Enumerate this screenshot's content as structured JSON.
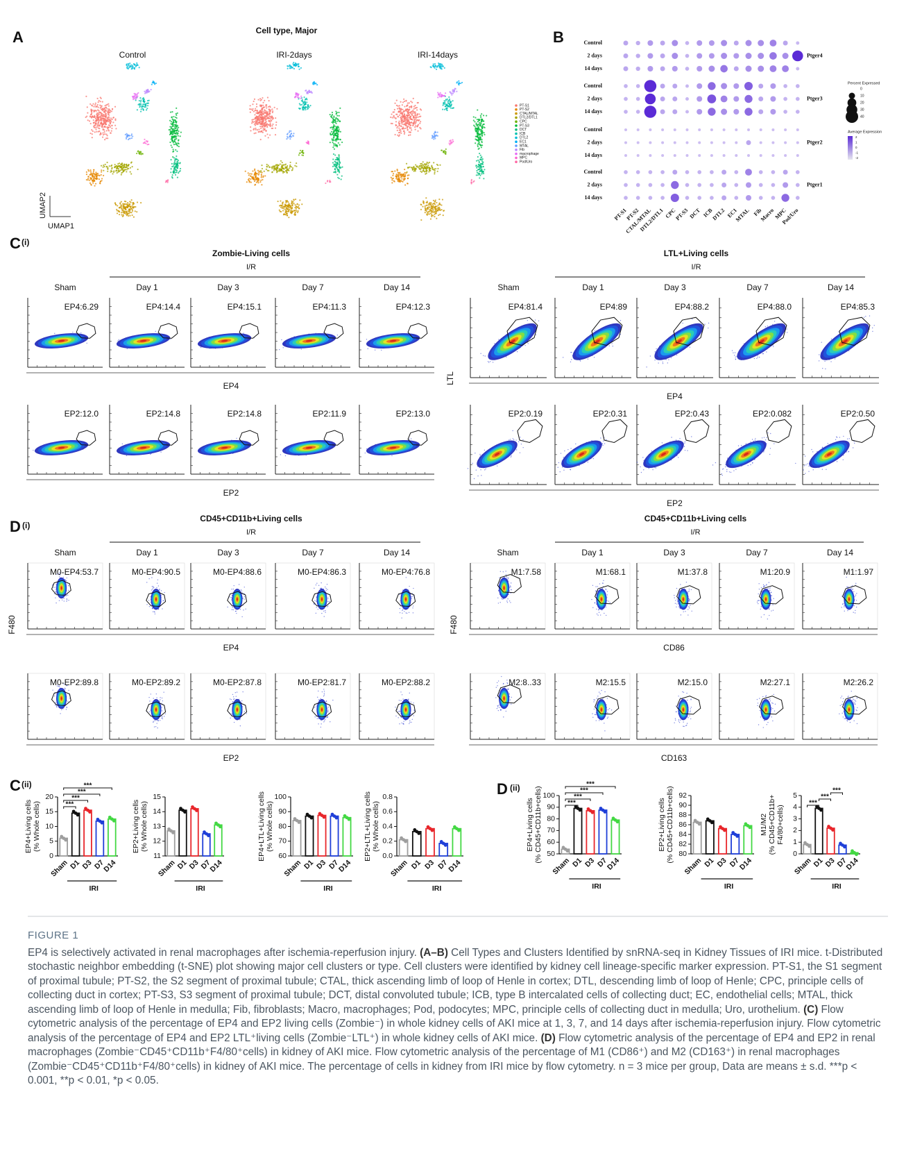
{
  "panel_labels": {
    "A": "A",
    "B": "B",
    "Ci": [
      "C",
      "(i)"
    ],
    "Di": [
      "D",
      "(i)"
    ],
    "Cii": [
      "C",
      "(ii)"
    ],
    "Dii": [
      "D",
      "(ii)"
    ]
  },
  "umap": {
    "title": "Cell type, Major",
    "plots": [
      "Control",
      "IRI-2days",
      "IRI-14days"
    ],
    "x_label": "UMAP1",
    "y_label": "UMAP2",
    "legend": [
      {
        "name": "PT-S1",
        "color": "#F8766D"
      },
      {
        "name": "PT-S2",
        "color": "#E58700"
      },
      {
        "name": "CTAL/MTAL",
        "color": "#C99800"
      },
      {
        "name": "DTL2/DTL1",
        "color": "#A3A500"
      },
      {
        "name": "CPC",
        "color": "#6BB100"
      },
      {
        "name": "PT-S3",
        "color": "#00BA38"
      },
      {
        "name": "DCT",
        "color": "#00BF7D"
      },
      {
        "name": "ICB",
        "color": "#00C0AF"
      },
      {
        "name": "DTL2",
        "color": "#00BCD8"
      },
      {
        "name": "EC1",
        "color": "#00B0F6"
      },
      {
        "name": "MTAL",
        "color": "#619CFF"
      },
      {
        "name": "Fib",
        "color": "#B983FF"
      },
      {
        "name": "macrophage",
        "color": "#E76BF3"
      },
      {
        "name": "MPC",
        "color": "#FD61D1"
      },
      {
        "name": "Pod/Uro",
        "color": "#FF67A4"
      }
    ]
  },
  "flow": [
    {
      "title": "Zombie-Living cells",
      "group": "I/R",
      "columns": [
        "Sham",
        "Day 1",
        "Day 3",
        "Day 7",
        "Day 14"
      ],
      "rows": [
        {
          "gates": [
            "EP4:6.29",
            "EP4:14.4",
            "EP4:15.1",
            "EP4:11.3",
            "EP4:12.3"
          ],
          "x_label": "EP4"
        },
        {
          "gates": [
            "EP2:12.0",
            "EP2:14.8",
            "EP2:14.8",
            "EP2:11.9",
            "EP2:13.0"
          ],
          "x_label": "EP2"
        }
      ]
    },
    {
      "title": "LTL+Living cells",
      "group": "I/R",
      "y_label": "LTL",
      "columns": [
        "Sham",
        "Day 1",
        "Day 3",
        "Day 7",
        "Day 14"
      ],
      "rows": [
        {
          "gates": [
            "EP4:81.4",
            "EP4:89",
            "EP4:88.2",
            "EP4:88.0",
            "EP4:85.3"
          ],
          "x_label": "EP4"
        },
        {
          "gates": [
            "EP2:0.19",
            "EP2:0.31",
            "EP2:0.43",
            "EP2:0.082",
            "EP2:0.50"
          ],
          "x_label": "EP2"
        }
      ]
    },
    {
      "title": "CD45+CD11b+Living cells",
      "group": "I/R",
      "y_label": "F480",
      "columns": [
        "Sham",
        "Day 1",
        "Day 3",
        "Day 7",
        "Day 14"
      ],
      "rows": [
        {
          "gates": [
            "M0-EP4:53.7",
            "M0-EP4:90.5",
            "M0-EP4:88.6",
            "M0-EP4:86.3",
            "M0-EP4:76.8"
          ],
          "x_label": "EP4"
        },
        {
          "gates": [
            "M0-EP2:89.8",
            "M0-EP2:89.2",
            "M0-EP2:87.8",
            "M0-EP2:81.7",
            "M0-EP2:88.2"
          ],
          "x_label": "EP2"
        }
      ]
    },
    {
      "title": "CD45+CD11b+Living cells",
      "group": "I/R",
      "y_label": "F480",
      "columns": [
        "Sham",
        "Day 1",
        "Day 3",
        "Day 7",
        "Day 14"
      ],
      "rows": [
        {
          "gates": [
            "M1:7.58",
            "M1:68.1",
            "M1:37.8",
            "M1:20.9",
            "M1:1.97"
          ],
          "x_label": "CD86"
        },
        {
          "gates": [
            "M2:8..33",
            "M2:15.5",
            "M2:15.0",
            "M2:27.1",
            "M2:26.2"
          ],
          "x_label": "CD163"
        }
      ]
    }
  ],
  "chart_data": [
    {
      "type": "dot",
      "categories": [
        "PT-S1",
        "PT-S2",
        "CTAL/MTAL",
        "DTL2/DTL1",
        "CPC",
        "PT-S3",
        "DCT",
        "ICB",
        "DTL2",
        "EC1",
        "MTAL",
        "Fib",
        "Macro",
        "MPC",
        "Pod/Uro"
      ],
      "conditions": [
        "Control",
        "2 days",
        "14 days"
      ],
      "genes": [
        "Ptger4",
        "Ptger3",
        "Ptger2",
        "Ptger1"
      ],
      "values": [
        [
          [
            6,
            5,
            8,
            6,
            10,
            4,
            8,
            8,
            10,
            6,
            10,
            10,
            12,
            6,
            3
          ],
          [
            6,
            5,
            8,
            6,
            10,
            4,
            8,
            8,
            10,
            8,
            10,
            10,
            14,
            10,
            30
          ],
          [
            6,
            5,
            8,
            6,
            8,
            4,
            8,
            10,
            14,
            6,
            10,
            10,
            12,
            12,
            3
          ]
        ],
        [
          [
            4,
            4,
            38,
            6,
            6,
            3,
            8,
            16,
            10,
            8,
            18,
            6,
            8,
            4,
            4
          ],
          [
            4,
            4,
            30,
            6,
            6,
            3,
            8,
            20,
            12,
            8,
            16,
            6,
            8,
            4,
            4
          ],
          [
            4,
            4,
            38,
            6,
            6,
            3,
            8,
            16,
            10,
            8,
            16,
            6,
            8,
            4,
            4
          ]
        ],
        [
          [
            2,
            2,
            2,
            2,
            2,
            2,
            2,
            2,
            2,
            2,
            2,
            2,
            2,
            2,
            2
          ],
          [
            2,
            2,
            2,
            2,
            2,
            2,
            2,
            2,
            2,
            2,
            6,
            2,
            2,
            2,
            2
          ],
          [
            2,
            2,
            2,
            2,
            2,
            2,
            2,
            2,
            2,
            2,
            2,
            2,
            2,
            2,
            2
          ]
        ],
        [
          [
            4,
            4,
            4,
            4,
            6,
            4,
            4,
            4,
            6,
            4,
            12,
            4,
            4,
            6,
            4
          ],
          [
            4,
            4,
            4,
            4,
            16,
            4,
            4,
            4,
            6,
            4,
            8,
            4,
            4,
            8,
            4
          ],
          [
            4,
            4,
            4,
            4,
            18,
            4,
            4,
            4,
            6,
            4,
            8,
            4,
            4,
            16,
            4
          ]
        ]
      ],
      "size_title": "Percent Expressed",
      "size_ticks": [
        0,
        10,
        20,
        30,
        40
      ],
      "color_title": "Average Expression",
      "color_ticks": [
        2,
        1,
        0,
        -1,
        -2
      ],
      "color": "#5b2bd6"
    },
    {
      "type": "bar",
      "y_label": [
        "EP4+Living cells",
        "(% Whole cells)"
      ],
      "categories": [
        "Sham",
        "D1",
        "D3",
        "D7",
        "D14"
      ],
      "group": "IRI",
      "values": [
        6,
        14.5,
        15.5,
        11.8,
        12.5
      ],
      "colors": [
        "#9e9e9e",
        "#111111",
        "#e8262b",
        "#1f3fd8",
        "#43d843"
      ],
      "ylim": [
        0,
        20
      ],
      "yticks": [
        0,
        5,
        10,
        15,
        20
      ],
      "significance": [
        {
          "pair": [
            "Sham",
            "D1"
          ],
          "label": "***"
        },
        {
          "pair": [
            "Sham",
            "D3"
          ],
          "label": "***"
        },
        {
          "pair": [
            "Sham",
            "D7"
          ],
          "label": "***"
        },
        {
          "pair": [
            "Sham",
            "D14"
          ],
          "label": "***"
        }
      ]
    },
    {
      "type": "bar",
      "y_label": [
        "EP2+Living cells",
        "(% Whole cells)"
      ],
      "categories": [
        "Sham",
        "D1",
        "D3",
        "D7",
        "D14"
      ],
      "group": "IRI",
      "values": [
        12.7,
        14.1,
        14.2,
        12.5,
        13.1
      ],
      "colors": [
        "#9e9e9e",
        "#111111",
        "#e8262b",
        "#1f3fd8",
        "#43d843"
      ],
      "ylim": [
        11,
        15
      ],
      "yticks": [
        11,
        12,
        13,
        14,
        15
      ]
    },
    {
      "type": "bar",
      "y_label": [
        "EP4+LTL+Living cells",
        "(% Whole cells)"
      ],
      "categories": [
        "Sham",
        "D1",
        "D3",
        "D7",
        "D14"
      ],
      "group": "IRI",
      "values": [
        84,
        87,
        87.5,
        87,
        86
      ],
      "colors": [
        "#9e9e9e",
        "#111111",
        "#e8262b",
        "#1f3fd8",
        "#43d843"
      ],
      "ylim": [
        60,
        100
      ],
      "yticks": [
        60,
        70,
        80,
        90,
        100
      ]
    },
    {
      "type": "bar",
      "y_label": [
        "EP2+LTL+Living cells",
        "(% Whole cells)"
      ],
      "categories": [
        "Sham",
        "D1",
        "D3",
        "D7",
        "D14"
      ],
      "group": "IRI",
      "values": [
        0.22,
        0.33,
        0.37,
        0.17,
        0.37
      ],
      "colors": [
        "#9e9e9e",
        "#111111",
        "#e8262b",
        "#1f3fd8",
        "#43d843"
      ],
      "ylim": [
        0,
        0.8
      ],
      "yticks": [
        {
          "value": 0,
          "label": "0.0"
        },
        0.2,
        0.4,
        0.6,
        0.8
      ]
    },
    {
      "type": "bar",
      "y_label": [
        "EP4+Living cells",
        "(% CD45+CD11b+cells)"
      ],
      "categories": [
        "Sham",
        "D1",
        "D3",
        "D7",
        "D14"
      ],
      "group": "IRI",
      "values": [
        54,
        89,
        87,
        87.5,
        79
      ],
      "colors": [
        "#9e9e9e",
        "#111111",
        "#e8262b",
        "#1f3fd8",
        "#43d843"
      ],
      "ylim": [
        50,
        100
      ],
      "yticks": [
        50,
        60,
        70,
        80,
        90,
        100
      ],
      "significance": [
        {
          "pair": [
            "Sham",
            "D1"
          ],
          "label": "***"
        },
        {
          "pair": [
            "Sham",
            "D3"
          ],
          "label": "***"
        },
        {
          "pair": [
            "Sham",
            "D7"
          ],
          "label": "***"
        },
        {
          "pair": [
            "Sham",
            "D14"
          ],
          "label": "***"
        }
      ]
    },
    {
      "type": "bar",
      "y_label": [
        "EP2+Living cells",
        "(% CD45+CD11b+cells)"
      ],
      "categories": [
        "Sham",
        "D1",
        "D3",
        "D7",
        "D14"
      ],
      "group": "IRI",
      "values": [
        86.5,
        86.8,
        85.2,
        84,
        85.8
      ],
      "colors": [
        "#9e9e9e",
        "#111111",
        "#e8262b",
        "#1f3fd8",
        "#43d843"
      ],
      "ylim": [
        80,
        92
      ],
      "yticks": [
        80,
        82,
        84,
        86,
        88,
        90,
        92
      ]
    },
    {
      "type": "bar",
      "y_label": [
        "M1/M2",
        "(% CD45+CD11b+",
        "F4/80+cells)"
      ],
      "categories": [
        "Sham",
        "D1",
        "D3",
        "D7",
        "D14"
      ],
      "group": "IRI",
      "values": [
        0.8,
        3.9,
        2.2,
        0.75,
        0.1
      ],
      "colors": [
        "#9e9e9e",
        "#111111",
        "#e8262b",
        "#1f3fd8",
        "#43d843"
      ],
      "ylim": [
        0,
        5
      ],
      "yticks": [
        0,
        1,
        2,
        3,
        4,
        5
      ],
      "significance": [
        {
          "pair": [
            "Sham",
            "D1"
          ],
          "label": "***"
        },
        {
          "pair": [
            "D1",
            "D3"
          ],
          "label": "***"
        },
        {
          "pair": [
            "D3",
            "D7"
          ],
          "label": "***"
        }
      ]
    }
  ],
  "caption": {
    "figure": "FIGURE 1",
    "segments": [
      {
        "text": "EP4 is selectively activated in renal macrophages after ischemia-reperfusion injury. ",
        "bold": false
      },
      {
        "text": "(A–B)",
        "bold": true
      },
      {
        "text": " Cell Types and Clusters Identified by snRNA-seq in Kidney Tissues of IRI mice. t-Distributed stochastic neighbor embedding (t-SNE) plot showing major cell clusters or type. Cell clusters were identified by kidney cell lineage-specific marker expression. PT-S1, the S1 segment of proximal tubule; PT-S2, the S2 segment of proximal tubule; CTAL, thick ascending limb of loop of Henle in cortex; DTL, descending limb of loop of Henle; CPC, principle cells of collecting duct in cortex; PT-S3, S3 segment of proximal tubule; DCT, distal convoluted tubule; ICB, type B intercalated cells of collecting duct; EC, endothelial cells; MTAL, thick ascending limb of loop of Henle in medulla; Fib, fibroblasts; Macro, macrophages; Pod, podocytes; MPC, principle cells of collecting duct in medulla; Uro, urothelium. ",
        "bold": false
      },
      {
        "text": "(C)",
        "bold": true
      },
      {
        "text": " Flow cytometric analysis of the percentage of EP4 and EP2 living cells (Zombie⁻) in whole kidney cells of AKI mice at 1, 3, 7, and 14 days after ischemia-reperfusion injury. Flow cytometric analysis of the percentage of EP4 and EP2 LTL⁺living cells (Zombie⁻LTL⁺) in whole kidney cells of AKI mice. ",
        "bold": false
      },
      {
        "text": "(D)",
        "bold": true
      },
      {
        "text": " Flow cytometric analysis of the percentage of EP4 and EP2 in renal macrophages (Zombie⁻CD45⁺CD11b⁺F4/80⁺cells) in kidney of AKI mice. Flow cytometric analysis of the percentage of M1 (CD86⁺) and M2 (CD163⁺) in renal macrophages (Zombie⁻CD45⁺CD11b⁺F4/80⁺cells) in kidney of AKI mice. The percentage of cells in kidney from IRI mice by flow cytometry. n = 3 mice per group, Data are means ± s.d. ***p < 0.001, **p < 0.01, *p < 0.05.",
        "bold": false
      }
    ]
  }
}
